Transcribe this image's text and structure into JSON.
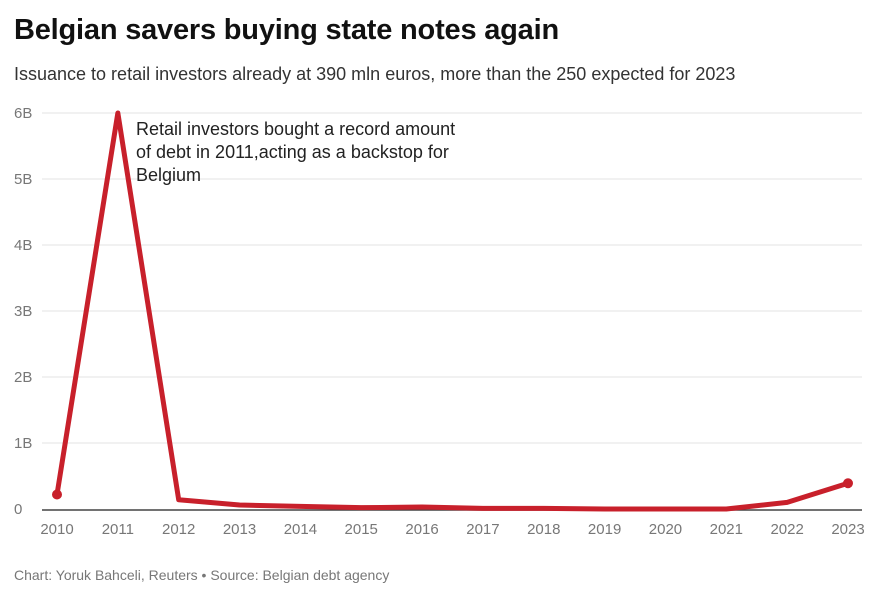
{
  "title": "Belgian savers buying state notes again",
  "subtitle": "Issuance to retail investors already at 390 mln euros, more than the 250 expected for 2023",
  "annotation": "Retail investors bought a record amount of debt in 2011,acting as a backstop for Belgium",
  "footer": "Chart: Yoruk Bahceli, Reuters • Source: Belgian debt agency",
  "chart_data": {
    "type": "line",
    "x": [
      "2010",
      "2011",
      "2012",
      "2013",
      "2014",
      "2015",
      "2016",
      "2017",
      "2018",
      "2019",
      "2020",
      "2021",
      "2022",
      "2023"
    ],
    "series": [
      {
        "values": [
          0.22,
          6.0,
          0.14,
          0.06,
          0.04,
          0.02,
          0.03,
          0.01,
          0.01,
          0.0,
          0.0,
          0.0,
          0.1,
          0.39
        ]
      }
    ],
    "ylim": [
      0,
      6
    ],
    "y_ticks": [
      0,
      1,
      2,
      3,
      4,
      5,
      6
    ],
    "y_tick_labels": [
      "0",
      "1B",
      "2B",
      "3B",
      "4B",
      "5B",
      "6B"
    ],
    "grid": true,
    "line_color": "#c8202b",
    "grid_color": "#e3e3e3",
    "axis_color": "#444444"
  }
}
